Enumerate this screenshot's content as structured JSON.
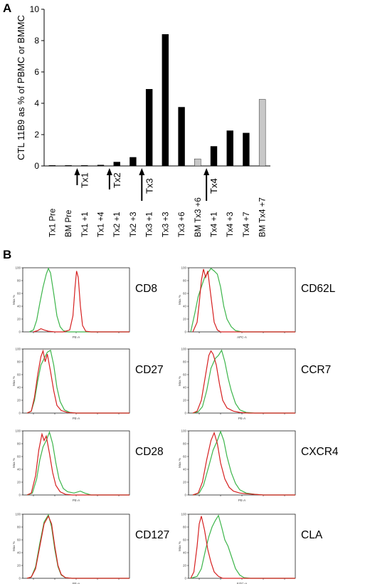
{
  "panel_labels": {
    "a": "A",
    "b": "B"
  },
  "chart_data": [
    {
      "type": "bar",
      "panel": "A",
      "ylabel": "CTL 11B9 as % of PBMC or BMMC",
      "xlabel": "",
      "ylim": [
        0,
        10
      ],
      "yticks": [
        0,
        2,
        4,
        6,
        8,
        10
      ],
      "grid": false,
      "categories": [
        "Tx1 Pre",
        "BM Pre",
        "Tx1 +1",
        "Tx1 +4",
        "Tx2 +1",
        "Tx2 +3",
        "Tx3 +1",
        "Tx3 +3",
        "Tx3 +6",
        "BM Tx3 +6",
        "Tx4 +1",
        "Tx4 +3",
        "Tx4 +7",
        "BM Tx4 +7"
      ],
      "values": [
        0,
        0,
        0.02,
        0.06,
        0.25,
        0.55,
        4.9,
        8.4,
        3.75,
        0.45,
        1.25,
        2.25,
        2.1,
        4.25
      ],
      "bar_colors": [
        "#000000",
        "#000000",
        "#000000",
        "#000000",
        "#000000",
        "#000000",
        "#000000",
        "#000000",
        "#000000",
        "#c8c8c8",
        "#000000",
        "#000000",
        "#000000",
        "#c8c8c8"
      ],
      "treatments": [
        {
          "label": "Tx1",
          "after_category": 2,
          "size": "small"
        },
        {
          "label": "Tx2",
          "after_category": 4,
          "size": "medium"
        },
        {
          "label": "Tx3",
          "after_category": 6,
          "size": "large"
        },
        {
          "label": "Tx4",
          "after_category": 10,
          "size": "large"
        }
      ]
    },
    {
      "type": "area",
      "panel": "B",
      "description_colors": {
        "red": "#d62020",
        "green": "#3cb54a"
      },
      "histograms": [
        {
          "marker": "CD8",
          "xlabel": "PE-A",
          "ylabel": "Max %",
          "yticks": [
            0,
            20,
            40,
            60,
            80,
            100
          ],
          "red": [
            [
              0,
              0
            ],
            [
              0.2,
              2
            ],
            [
              0.35,
              5
            ],
            [
              0.5,
              3
            ],
            [
              0.7,
              1
            ],
            [
              1.0,
              0
            ],
            [
              1.4,
              0
            ],
            [
              1.7,
              3
            ],
            [
              1.85,
              25
            ],
            [
              1.95,
              70
            ],
            [
              2.02,
              95
            ],
            [
              2.1,
              85
            ],
            [
              2.2,
              40
            ],
            [
              2.3,
              10
            ],
            [
              2.45,
              1
            ],
            [
              2.7,
              0
            ],
            [
              4.5,
              0
            ]
          ],
          "green": [
            [
              -0.2,
              0
            ],
            [
              0.0,
              3
            ],
            [
              0.15,
              18
            ],
            [
              0.3,
              45
            ],
            [
              0.45,
              70
            ],
            [
              0.6,
              90
            ],
            [
              0.7,
              99
            ],
            [
              0.8,
              92
            ],
            [
              0.95,
              60
            ],
            [
              1.1,
              25
            ],
            [
              1.25,
              8
            ],
            [
              1.4,
              2
            ],
            [
              1.6,
              0
            ],
            [
              4.5,
              0
            ]
          ]
        },
        {
          "marker": "CD62L",
          "xlabel": "APC-A",
          "ylabel": "Max %",
          "yticks": [
            0,
            20,
            40,
            60,
            80,
            100
          ],
          "red": [
            [
              -0.3,
              0
            ],
            [
              -0.1,
              15
            ],
            [
              0.0,
              45
            ],
            [
              0.1,
              80
            ],
            [
              0.2,
              98
            ],
            [
              0.3,
              85
            ],
            [
              0.4,
              95
            ],
            [
              0.55,
              55
            ],
            [
              0.7,
              15
            ],
            [
              0.85,
              3
            ],
            [
              1.0,
              0
            ],
            [
              4.5,
              0
            ]
          ],
          "green": [
            [
              -0.4,
              0
            ],
            [
              -0.2,
              30
            ],
            [
              -0.05,
              55
            ],
            [
              0.1,
              70
            ],
            [
              0.25,
              85
            ],
            [
              0.4,
              92
            ],
            [
              0.55,
              99
            ],
            [
              0.7,
              95
            ],
            [
              0.85,
              90
            ],
            [
              1.0,
              70
            ],
            [
              1.15,
              40
            ],
            [
              1.3,
              20
            ],
            [
              1.5,
              8
            ],
            [
              1.7,
              2
            ],
            [
              2.0,
              0
            ],
            [
              4.5,
              0
            ]
          ]
        },
        {
          "marker": "CD27",
          "xlabel": "PE-A",
          "ylabel": "Max %",
          "yticks": [
            0,
            20,
            40,
            60,
            80,
            100
          ],
          "red": [
            [
              -0.3,
              0
            ],
            [
              -0.1,
              3
            ],
            [
              0.05,
              25
            ],
            [
              0.2,
              60
            ],
            [
              0.35,
              88
            ],
            [
              0.45,
              97
            ],
            [
              0.55,
              80
            ],
            [
              0.65,
              92
            ],
            [
              0.8,
              65
            ],
            [
              0.95,
              35
            ],
            [
              1.1,
              12
            ],
            [
              1.3,
              4
            ],
            [
              1.6,
              1
            ],
            [
              2.0,
              0
            ],
            [
              4.5,
              0
            ]
          ],
          "green": [
            [
              -0.3,
              0
            ],
            [
              -0.1,
              3
            ],
            [
              0.05,
              20
            ],
            [
              0.2,
              50
            ],
            [
              0.35,
              75
            ],
            [
              0.5,
              85
            ],
            [
              0.65,
              95
            ],
            [
              0.8,
              98
            ],
            [
              0.95,
              75
            ],
            [
              1.1,
              40
            ],
            [
              1.25,
              18
            ],
            [
              1.45,
              5
            ],
            [
              1.7,
              1
            ],
            [
              2.0,
              0
            ],
            [
              4.5,
              0
            ]
          ]
        },
        {
          "marker": "CCR7",
          "xlabel": "PE-A",
          "ylabel": "Max %",
          "yticks": [
            0,
            20,
            40,
            60,
            80,
            100
          ],
          "red": [
            [
              -0.3,
              0
            ],
            [
              -0.1,
              3
            ],
            [
              0.1,
              20
            ],
            [
              0.3,
              60
            ],
            [
              0.45,
              90
            ],
            [
              0.55,
              97
            ],
            [
              0.65,
              92
            ],
            [
              0.8,
              75
            ],
            [
              0.95,
              45
            ],
            [
              1.1,
              20
            ],
            [
              1.3,
              8
            ],
            [
              1.6,
              3
            ],
            [
              1.9,
              1
            ],
            [
              2.3,
              0
            ],
            [
              4.5,
              0
            ]
          ],
          "green": [
            [
              -0.3,
              0
            ],
            [
              -0.05,
              2
            ],
            [
              0.15,
              10
            ],
            [
              0.35,
              35
            ],
            [
              0.55,
              70
            ],
            [
              0.75,
              85
            ],
            [
              0.9,
              90
            ],
            [
              1.05,
              98
            ],
            [
              1.2,
              80
            ],
            [
              1.35,
              55
            ],
            [
              1.5,
              35
            ],
            [
              1.7,
              15
            ],
            [
              1.9,
              5
            ],
            [
              2.2,
              1
            ],
            [
              2.6,
              0
            ],
            [
              4.5,
              0
            ]
          ]
        },
        {
          "marker": "CD28",
          "xlabel": "PE-A",
          "ylabel": "Max %",
          "yticks": [
            0,
            20,
            40,
            60,
            80,
            100
          ],
          "red": [
            [
              -0.3,
              0
            ],
            [
              -0.1,
              3
            ],
            [
              0.1,
              30
            ],
            [
              0.25,
              70
            ],
            [
              0.4,
              95
            ],
            [
              0.5,
              85
            ],
            [
              0.6,
              92
            ],
            [
              0.75,
              65
            ],
            [
              0.9,
              35
            ],
            [
              1.05,
              15
            ],
            [
              1.25,
              5
            ],
            [
              1.5,
              1
            ],
            [
              1.8,
              0
            ],
            [
              4.5,
              0
            ]
          ],
          "green": [
            [
              -0.3,
              0
            ],
            [
              -0.05,
              3
            ],
            [
              0.15,
              25
            ],
            [
              0.3,
              55
            ],
            [
              0.45,
              75
            ],
            [
              0.6,
              85
            ],
            [
              0.75,
              98
            ],
            [
              0.9,
              80
            ],
            [
              1.05,
              50
            ],
            [
              1.2,
              25
            ],
            [
              1.4,
              10
            ],
            [
              1.6,
              5
            ],
            [
              1.9,
              3
            ],
            [
              2.2,
              6
            ],
            [
              2.4,
              3
            ],
            [
              2.7,
              0
            ],
            [
              4.5,
              0
            ]
          ]
        },
        {
          "marker": "CXCR4",
          "xlabel": "PE-A",
          "ylabel": "Max %",
          "yticks": [
            0,
            20,
            40,
            60,
            80,
            100
          ],
          "red": [
            [
              -0.3,
              0
            ],
            [
              -0.05,
              3
            ],
            [
              0.15,
              20
            ],
            [
              0.35,
              55
            ],
            [
              0.55,
              85
            ],
            [
              0.7,
              97
            ],
            [
              0.85,
              80
            ],
            [
              1.0,
              50
            ],
            [
              1.2,
              25
            ],
            [
              1.4,
              12
            ],
            [
              1.6,
              6
            ],
            [
              1.9,
              3
            ],
            [
              2.2,
              2
            ],
            [
              2.6,
              1
            ],
            [
              3.0,
              0
            ],
            [
              4.5,
              0
            ]
          ],
          "green": [
            [
              -0.3,
              0
            ],
            [
              0.0,
              3
            ],
            [
              0.2,
              15
            ],
            [
              0.45,
              45
            ],
            [
              0.65,
              70
            ],
            [
              0.85,
              85
            ],
            [
              1.0,
              99
            ],
            [
              1.15,
              85
            ],
            [
              1.3,
              60
            ],
            [
              1.5,
              35
            ],
            [
              1.7,
              18
            ],
            [
              1.9,
              8
            ],
            [
              2.2,
              3
            ],
            [
              2.6,
              1
            ],
            [
              3.0,
              0
            ],
            [
              4.5,
              0
            ]
          ]
        },
        {
          "marker": "CD127",
          "xlabel": "PE-A",
          "ylabel": "Max %",
          "yticks": [
            0,
            20,
            40,
            60,
            80,
            100
          ],
          "red": [
            [
              -0.3,
              0
            ],
            [
              -0.1,
              2
            ],
            [
              0.1,
              15
            ],
            [
              0.3,
              50
            ],
            [
              0.5,
              85
            ],
            [
              0.7,
              97
            ],
            [
              0.85,
              85
            ],
            [
              1.0,
              50
            ],
            [
              1.15,
              20
            ],
            [
              1.3,
              6
            ],
            [
              1.5,
              1
            ],
            [
              1.8,
              0
            ],
            [
              4.5,
              0
            ]
          ],
          "green": [
            [
              -0.3,
              0
            ],
            [
              -0.1,
              2
            ],
            [
              0.1,
              18
            ],
            [
              0.3,
              55
            ],
            [
              0.5,
              88
            ],
            [
              0.7,
              99
            ],
            [
              0.85,
              80
            ],
            [
              1.0,
              45
            ],
            [
              1.15,
              18
            ],
            [
              1.3,
              5
            ],
            [
              1.5,
              1
            ],
            [
              1.8,
              0
            ],
            [
              4.5,
              0
            ]
          ]
        },
        {
          "marker": "CLA",
          "xlabel": "FITC-A",
          "ylabel": "Max %",
          "yticks": [
            0,
            20,
            40,
            60,
            80,
            100
          ],
          "red": [
            [
              -0.4,
              0
            ],
            [
              -0.25,
              10
            ],
            [
              -0.1,
              50
            ],
            [
              0.0,
              85
            ],
            [
              0.1,
              97
            ],
            [
              0.25,
              75
            ],
            [
              0.4,
              45
            ],
            [
              0.55,
              25
            ],
            [
              0.7,
              10
            ],
            [
              0.9,
              3
            ],
            [
              1.1,
              0
            ],
            [
              4.5,
              0
            ]
          ],
          "green": [
            [
              -0.4,
              0
            ],
            [
              -0.1,
              3
            ],
            [
              0.1,
              15
            ],
            [
              0.3,
              45
            ],
            [
              0.45,
              65
            ],
            [
              0.6,
              80
            ],
            [
              0.75,
              90
            ],
            [
              0.9,
              98
            ],
            [
              1.05,
              80
            ],
            [
              1.2,
              60
            ],
            [
              1.35,
              50
            ],
            [
              1.5,
              35
            ],
            [
              1.7,
              15
            ],
            [
              1.9,
              5
            ],
            [
              2.1,
              1
            ],
            [
              2.4,
              0
            ],
            [
              4.5,
              0
            ]
          ]
        }
      ]
    }
  ]
}
